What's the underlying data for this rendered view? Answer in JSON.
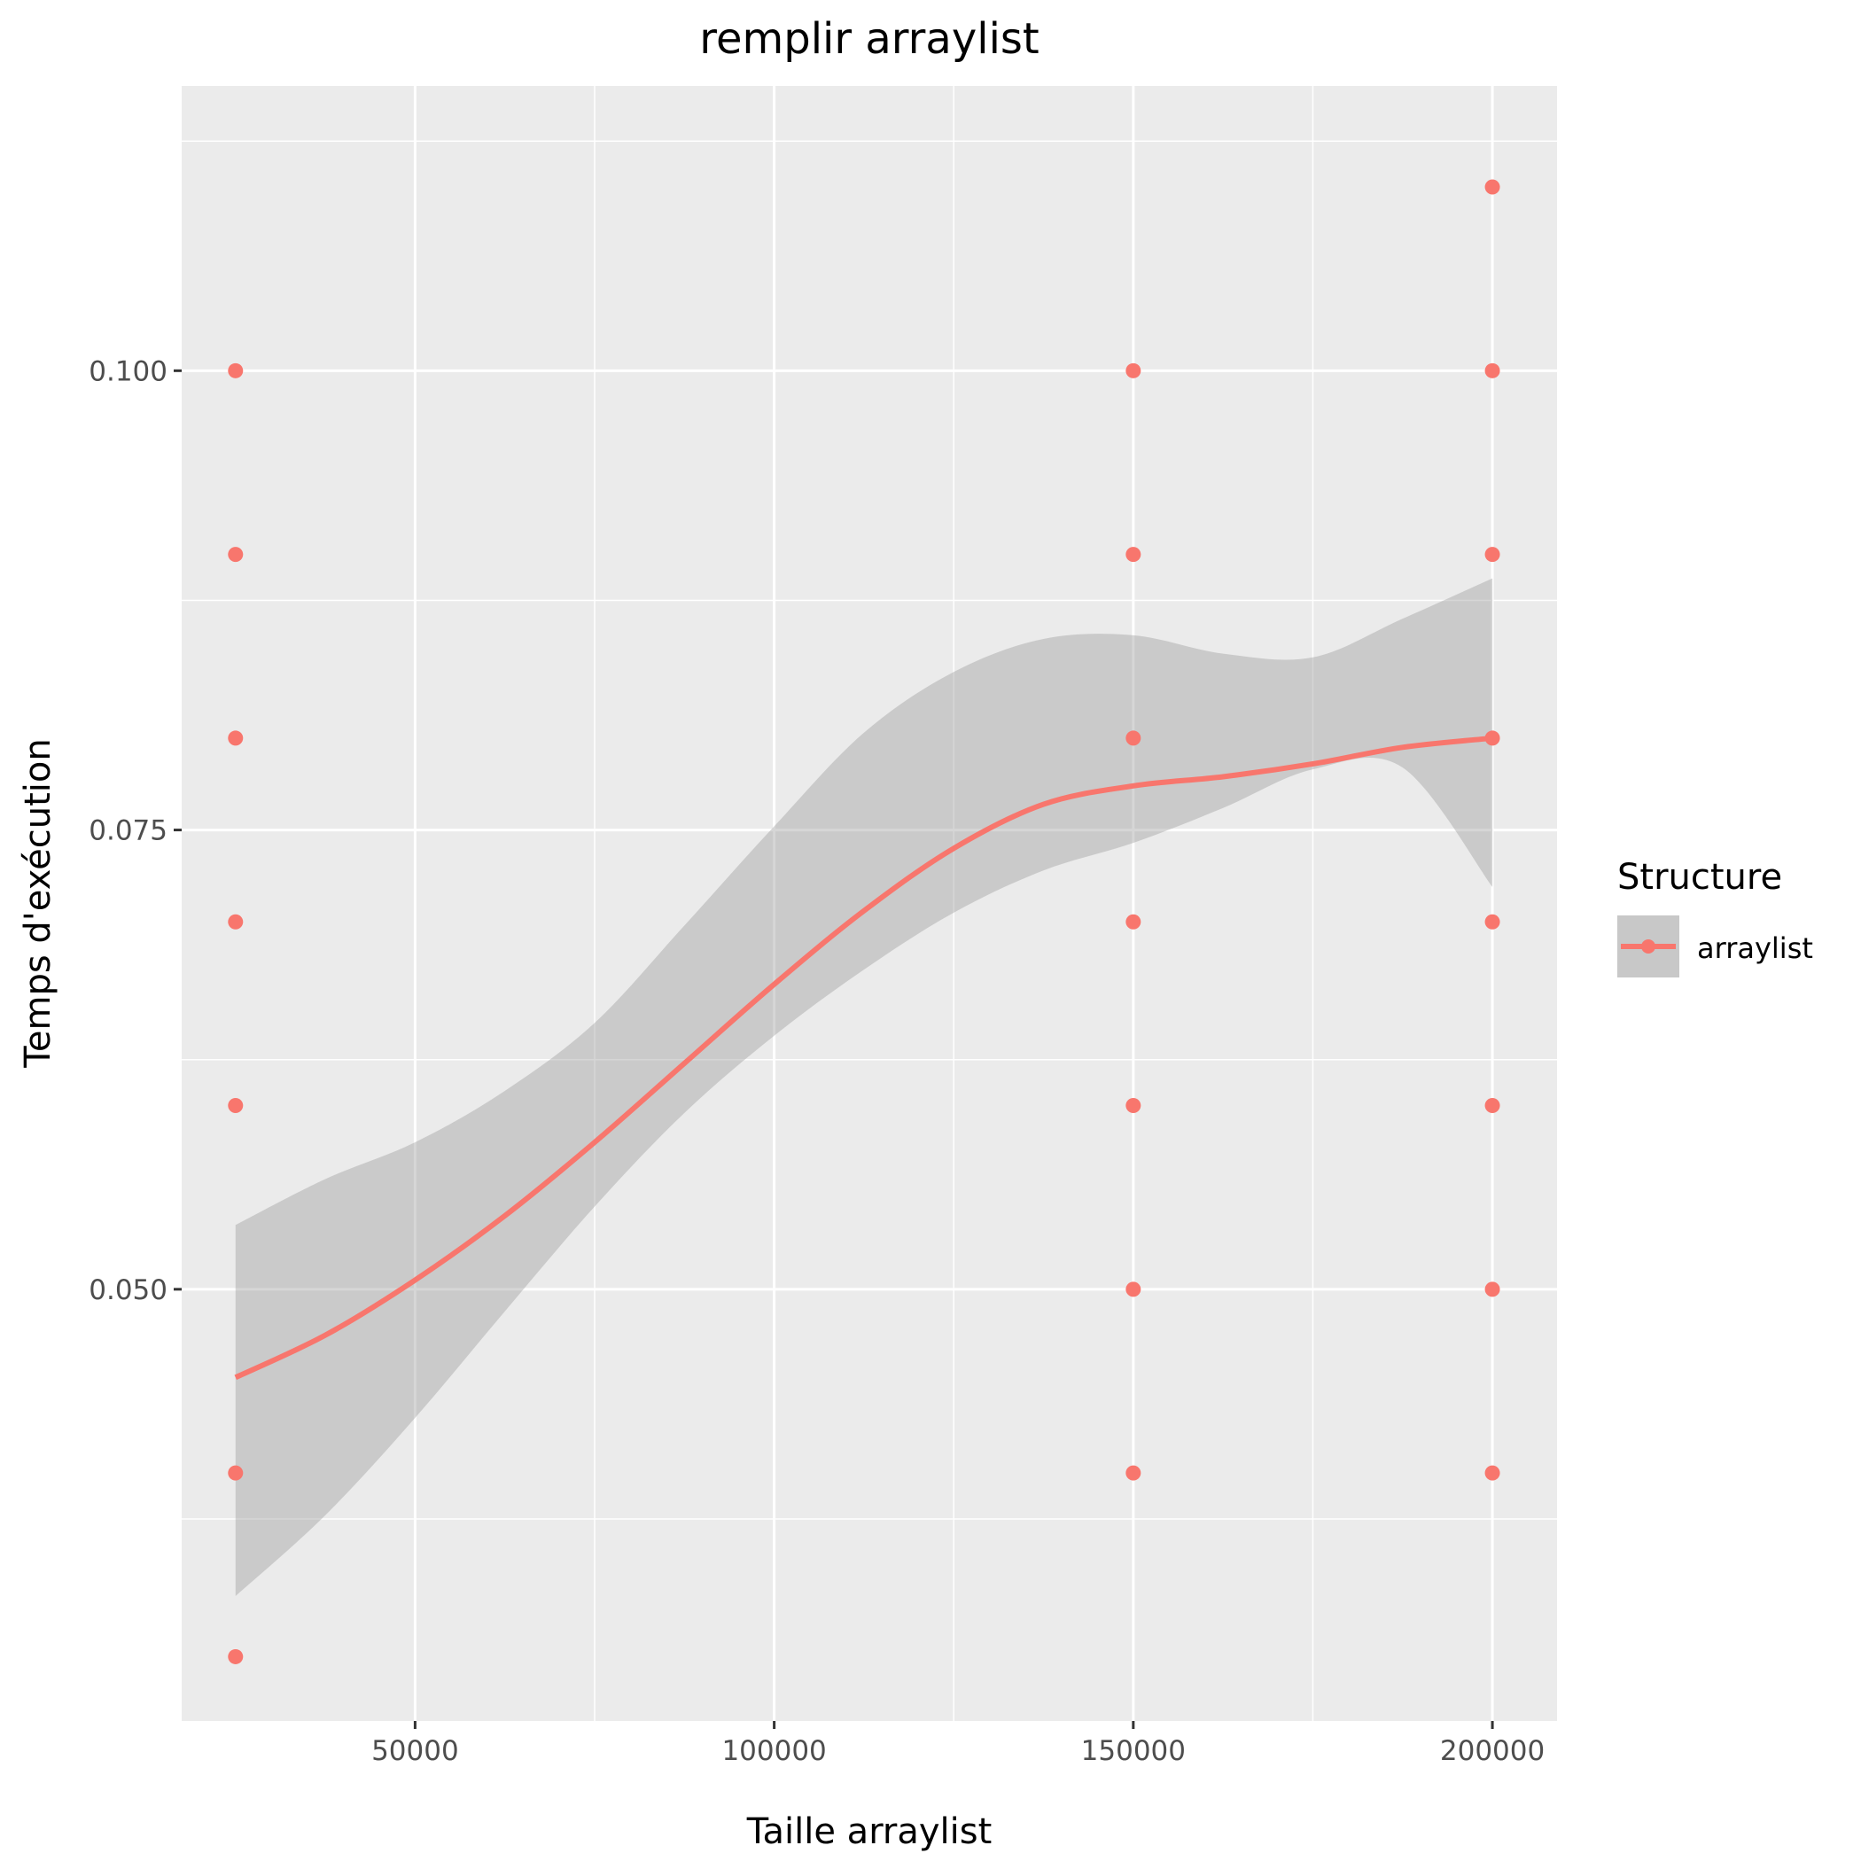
{
  "chart_data": {
    "type": "scatter",
    "title": "remplir arraylist",
    "xlabel": "Taille arraylist",
    "ylabel": "Temps d'exécution",
    "xlim": [
      17500,
      209000
    ],
    "ylim": [
      0.0265,
      0.1155
    ],
    "x_ticks": [
      50000,
      100000,
      150000,
      200000
    ],
    "x_tick_labels": [
      "50000",
      "100000",
      "150000",
      "200000"
    ],
    "y_ticks": [
      0.05,
      0.075,
      0.1
    ],
    "y_tick_labels": [
      "0.050",
      "0.075",
      "0.100"
    ],
    "grid": true,
    "legend": {
      "title": "Structure",
      "position": "right",
      "entries": [
        "arraylist"
      ]
    },
    "colors": {
      "series": "#F8766D",
      "ribbon": "#C8C8C8",
      "panel": "#EBEBEB",
      "grid": "#FFFFFF"
    },
    "series": [
      {
        "name": "arraylist",
        "points": [
          [
            25000,
            0.1
          ],
          [
            25000,
            0.09
          ],
          [
            25000,
            0.08
          ],
          [
            25000,
            0.07
          ],
          [
            25000,
            0.06
          ],
          [
            25000,
            0.04
          ],
          [
            25000,
            0.03
          ],
          [
            150000,
            0.1
          ],
          [
            150000,
            0.09
          ],
          [
            150000,
            0.08
          ],
          [
            150000,
            0.07
          ],
          [
            150000,
            0.06
          ],
          [
            150000,
            0.05
          ],
          [
            150000,
            0.04
          ],
          [
            200000,
            0.11
          ],
          [
            200000,
            0.1
          ],
          [
            200000,
            0.09
          ],
          [
            200000,
            0.08
          ],
          [
            200000,
            0.07
          ],
          [
            200000,
            0.06
          ],
          [
            200000,
            0.05
          ],
          [
            200000,
            0.04
          ]
        ],
        "smooth": {
          "x": [
            25000,
            37500,
            50000,
            62500,
            75000,
            87500,
            100000,
            112500,
            125000,
            137500,
            150000,
            162500,
            175000,
            187500,
            200000
          ],
          "y": [
            0.0452,
            0.0475,
            0.0505,
            0.054,
            0.058,
            0.0623,
            0.0666,
            0.0706,
            0.074,
            0.0764,
            0.0774,
            0.0779,
            0.0786,
            0.0795,
            0.08
          ],
          "ymin": [
            0.0333,
            0.0377,
            0.043,
            0.0488,
            0.0545,
            0.0596,
            0.0638,
            0.0674,
            0.0705,
            0.0728,
            0.0743,
            0.0762,
            0.0783,
            0.0784,
            0.0719
          ],
          "ymax": [
            0.0535,
            0.056,
            0.058,
            0.0608,
            0.0645,
            0.0698,
            0.0752,
            0.0803,
            0.0836,
            0.0854,
            0.0856,
            0.0846,
            0.0844,
            0.0865,
            0.0887
          ]
        }
      }
    ]
  }
}
